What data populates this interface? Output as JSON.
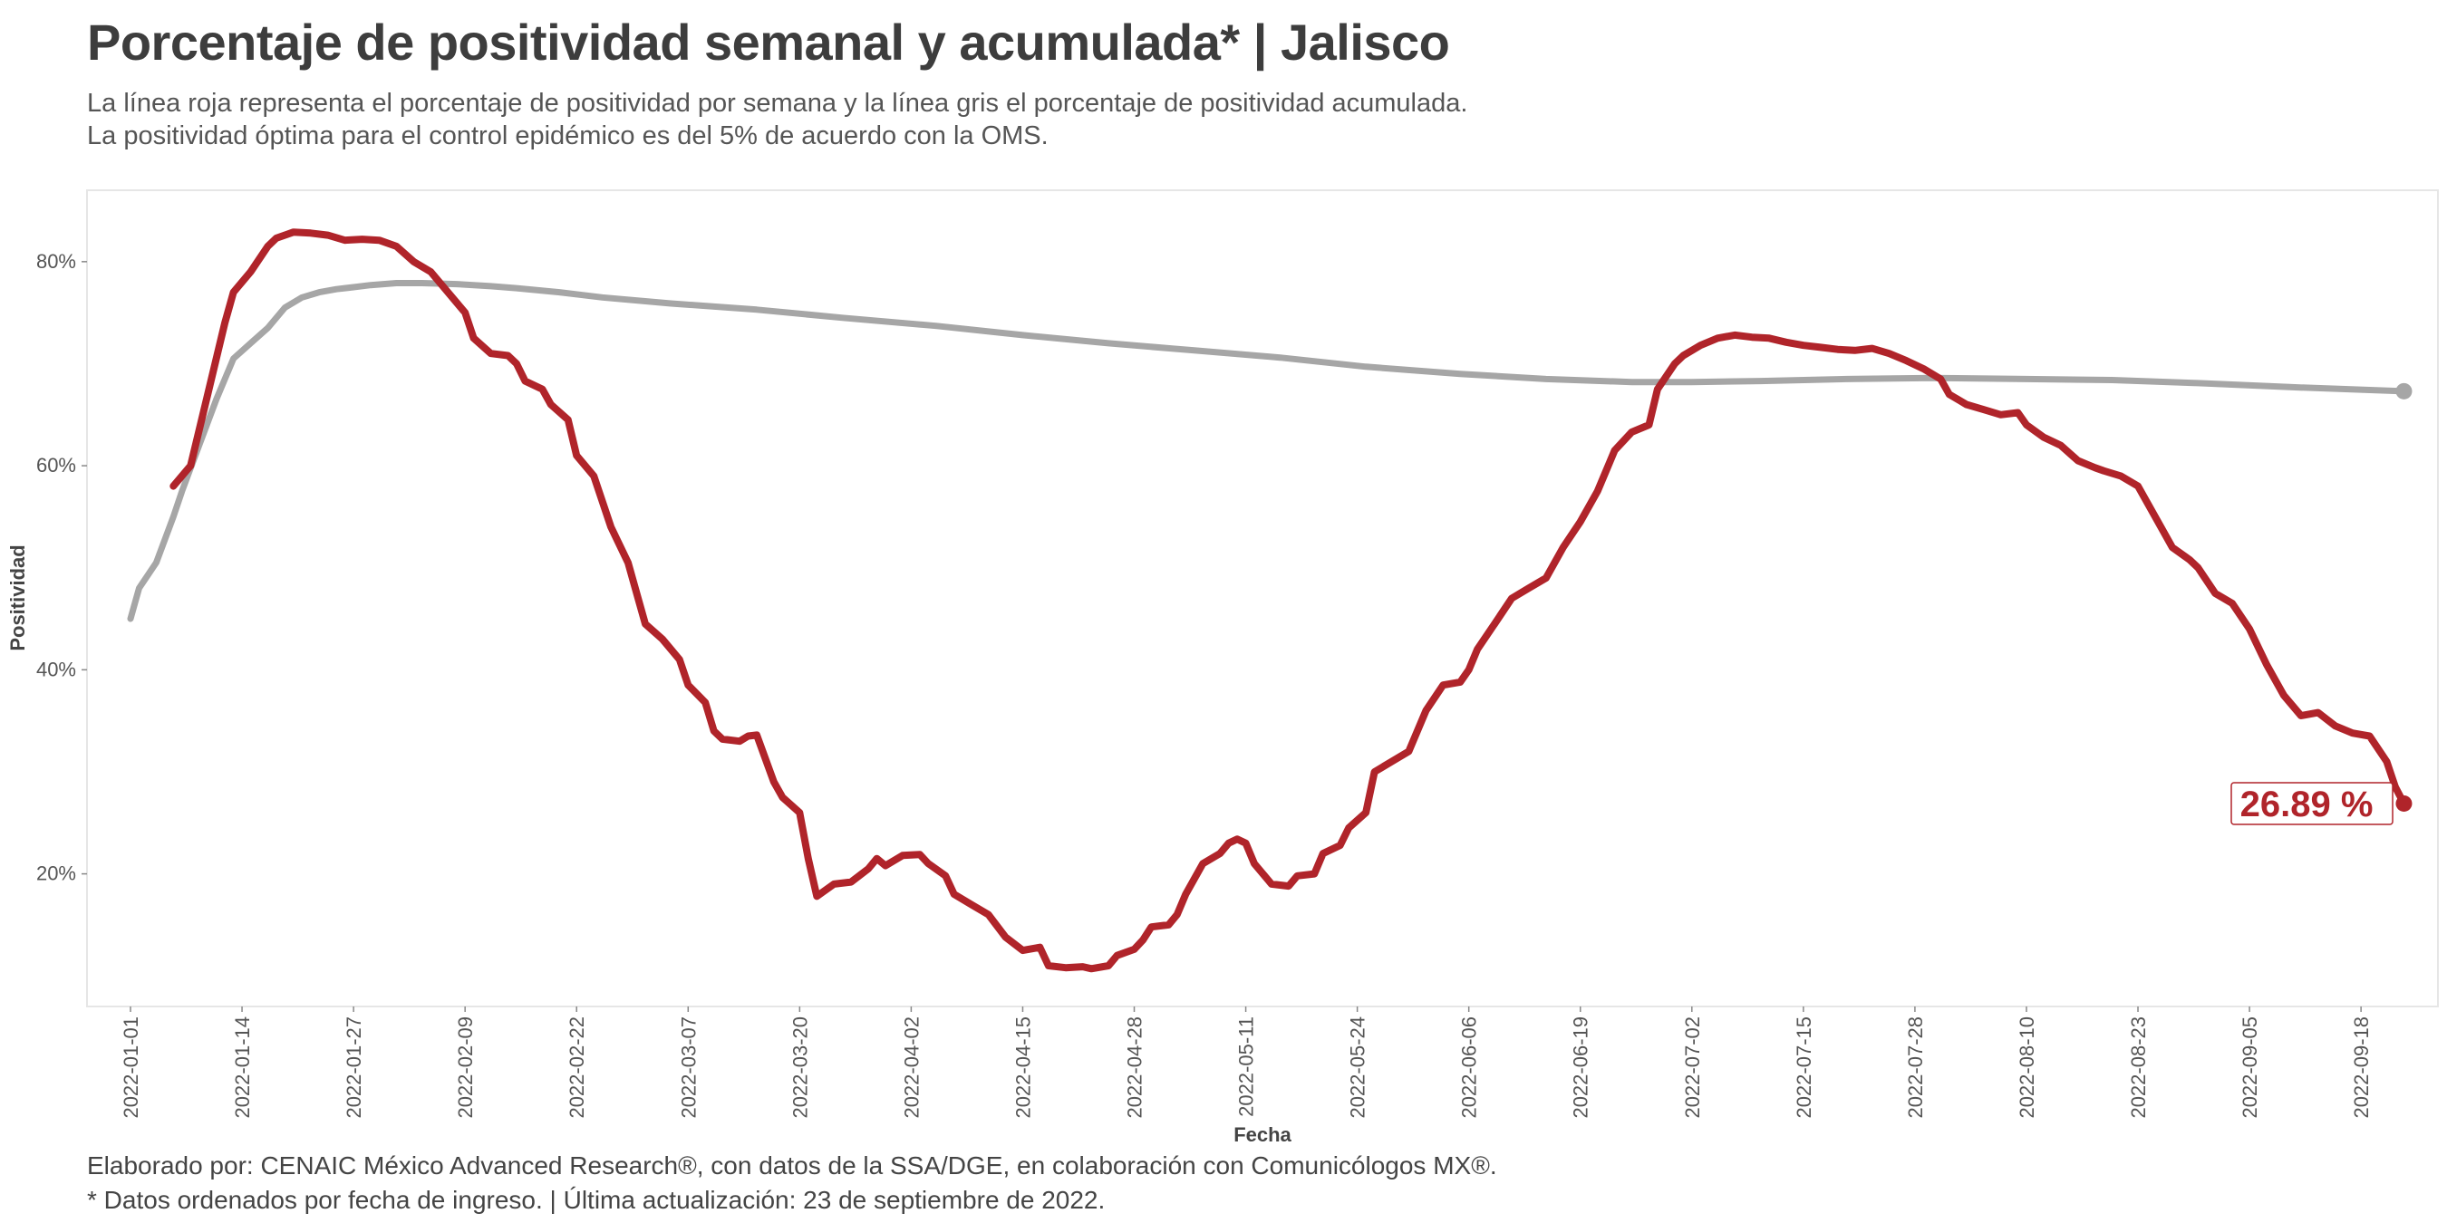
{
  "header": {
    "title": "Porcentaje de positividad semanal y acumulada* | Jalisco",
    "subtitle_1": "La línea roja representa el porcentaje de positividad por semana y la línea gris el porcentaje de positividad acumulada.",
    "subtitle_2": "La positividad óptima para el control epidémico es del 5% de acuerdo con la OMS."
  },
  "footer": {
    "line_1": "Elaborado por: CENAIC México Advanced Research®, con datos de la SSA/DGE, en colaboración con Comunicólogos MX®.",
    "line_2": "* Datos ordenados por fecha de ingreso. | Última actualización: 23 de septiembre de 2022."
  },
  "colors": {
    "weekly": "#b0242a",
    "cumulative": "#a6a6a6",
    "panel_border": "#e6e6e6"
  },
  "chart_data": {
    "type": "line",
    "xlabel": "Fecha",
    "ylabel": "Positividad",
    "x_start": "2022-01-01",
    "x_end": "2022-09-22",
    "ylim": [
      7,
      87
    ],
    "y_ticks": [
      20,
      40,
      60,
      80
    ],
    "y_tick_labels": [
      "20%",
      "40%",
      "60%",
      "80%"
    ],
    "x_ticks": [
      "2022-01-01",
      "2022-01-14",
      "2022-01-27",
      "2022-02-09",
      "2022-02-22",
      "2022-03-07",
      "2022-03-20",
      "2022-04-02",
      "2022-04-15",
      "2022-04-28",
      "2022-05-11",
      "2022-05-24",
      "2022-06-06",
      "2022-06-19",
      "2022-07-02",
      "2022-07-15",
      "2022-07-28",
      "2022-08-10",
      "2022-08-23",
      "2022-09-05",
      "2022-09-18"
    ],
    "grid": false,
    "end_label": "26.89 %",
    "series": [
      {
        "color": "#b0242a",
        "points": [
          [
            "2022-01-06",
            58.0
          ],
          [
            "2022-01-08",
            60.0
          ],
          [
            "2022-01-10",
            67.0
          ],
          [
            "2022-01-12",
            74.0
          ],
          [
            "2022-01-13",
            77.0
          ],
          [
            "2022-01-15",
            79.0
          ],
          [
            "2022-01-17",
            81.5
          ],
          [
            "2022-01-18",
            82.3
          ],
          [
            "2022-01-20",
            82.9
          ],
          [
            "2022-01-22",
            82.8
          ],
          [
            "2022-01-24",
            82.6
          ],
          [
            "2022-01-26",
            82.1
          ],
          [
            "2022-01-28",
            82.2
          ],
          [
            "2022-01-30",
            82.1
          ],
          [
            "2022-02-01",
            81.5
          ],
          [
            "2022-02-03",
            80.0
          ],
          [
            "2022-02-05",
            79.0
          ],
          [
            "2022-02-07",
            77.0
          ],
          [
            "2022-02-09",
            75.0
          ],
          [
            "2022-02-10",
            72.5
          ],
          [
            "2022-02-12",
            71.0
          ],
          [
            "2022-02-14",
            70.8
          ],
          [
            "2022-02-15",
            70.0
          ],
          [
            "2022-02-16",
            68.3
          ],
          [
            "2022-02-18",
            67.5
          ],
          [
            "2022-02-19",
            66.0
          ],
          [
            "2022-02-21",
            64.5
          ],
          [
            "2022-02-22",
            61.0
          ],
          [
            "2022-02-24",
            59.0
          ],
          [
            "2022-02-26",
            54.0
          ],
          [
            "2022-02-28",
            50.5
          ],
          [
            "2022-03-01",
            47.5
          ],
          [
            "2022-03-02",
            44.5
          ],
          [
            "2022-03-04",
            43.0
          ],
          [
            "2022-03-06",
            41.0
          ],
          [
            "2022-03-07",
            38.5
          ],
          [
            "2022-03-09",
            36.8
          ],
          [
            "2022-03-10",
            34.0
          ],
          [
            "2022-03-11",
            33.2
          ],
          [
            "2022-03-13",
            33.0
          ],
          [
            "2022-03-14",
            33.5
          ],
          [
            "2022-03-15",
            33.6
          ],
          [
            "2022-03-17",
            29.0
          ],
          [
            "2022-03-18",
            27.5
          ],
          [
            "2022-03-20",
            26.0
          ],
          [
            "2022-03-21",
            21.5
          ],
          [
            "2022-03-22",
            17.8
          ],
          [
            "2022-03-24",
            19.0
          ],
          [
            "2022-03-26",
            19.2
          ],
          [
            "2022-03-28",
            20.5
          ],
          [
            "2022-03-29",
            21.5
          ],
          [
            "2022-03-30",
            20.8
          ],
          [
            "2022-04-01",
            21.8
          ],
          [
            "2022-04-03",
            21.9
          ],
          [
            "2022-04-04",
            21.0
          ],
          [
            "2022-04-06",
            19.8
          ],
          [
            "2022-04-07",
            18.0
          ],
          [
            "2022-04-09",
            17.0
          ],
          [
            "2022-04-11",
            16.0
          ],
          [
            "2022-04-13",
            13.8
          ],
          [
            "2022-04-15",
            12.5
          ],
          [
            "2022-04-17",
            12.8
          ],
          [
            "2022-04-18",
            11.0
          ],
          [
            "2022-04-20",
            10.8
          ],
          [
            "2022-04-22",
            10.9
          ],
          [
            "2022-04-23",
            10.7
          ],
          [
            "2022-04-25",
            11.0
          ],
          [
            "2022-04-26",
            12.0
          ],
          [
            "2022-04-28",
            12.6
          ],
          [
            "2022-04-29",
            13.5
          ],
          [
            "2022-04-30",
            14.8
          ],
          [
            "2022-05-02",
            15.0
          ],
          [
            "2022-05-03",
            16.0
          ],
          [
            "2022-05-04",
            18.0
          ],
          [
            "2022-05-06",
            21.0
          ],
          [
            "2022-05-08",
            22.0
          ],
          [
            "2022-05-09",
            23.0
          ],
          [
            "2022-05-10",
            23.4
          ],
          [
            "2022-05-11",
            23.0
          ],
          [
            "2022-05-12",
            21.0
          ],
          [
            "2022-05-14",
            19.0
          ],
          [
            "2022-05-16",
            18.8
          ],
          [
            "2022-05-17",
            19.8
          ],
          [
            "2022-05-19",
            20.0
          ],
          [
            "2022-05-20",
            22.0
          ],
          [
            "2022-05-22",
            22.8
          ],
          [
            "2022-05-23",
            24.5
          ],
          [
            "2022-05-25",
            26.0
          ],
          [
            "2022-05-26",
            30.0
          ],
          [
            "2022-05-28",
            31.0
          ],
          [
            "2022-05-30",
            32.0
          ],
          [
            "2022-06-01",
            36.0
          ],
          [
            "2022-06-03",
            38.5
          ],
          [
            "2022-06-05",
            38.8
          ],
          [
            "2022-06-06",
            40.0
          ],
          [
            "2022-06-07",
            42.0
          ],
          [
            "2022-06-09",
            44.5
          ],
          [
            "2022-06-11",
            47.0
          ],
          [
            "2022-06-13",
            48.0
          ],
          [
            "2022-06-15",
            49.0
          ],
          [
            "2022-06-17",
            52.0
          ],
          [
            "2022-06-19",
            54.5
          ],
          [
            "2022-06-21",
            57.5
          ],
          [
            "2022-06-23",
            61.5
          ],
          [
            "2022-06-25",
            63.3
          ],
          [
            "2022-06-27",
            64.0
          ],
          [
            "2022-06-28",
            67.5
          ],
          [
            "2022-06-30",
            70.0
          ],
          [
            "2022-07-01",
            70.8
          ],
          [
            "2022-07-03",
            71.8
          ],
          [
            "2022-07-05",
            72.5
          ],
          [
            "2022-07-07",
            72.8
          ],
          [
            "2022-07-09",
            72.6
          ],
          [
            "2022-07-11",
            72.5
          ],
          [
            "2022-07-13",
            72.1
          ],
          [
            "2022-07-15",
            71.8
          ],
          [
            "2022-07-17",
            71.6
          ],
          [
            "2022-07-19",
            71.4
          ],
          [
            "2022-07-21",
            71.3
          ],
          [
            "2022-07-23",
            71.5
          ],
          [
            "2022-07-25",
            71.0
          ],
          [
            "2022-07-27",
            70.3
          ],
          [
            "2022-07-29",
            69.5
          ],
          [
            "2022-07-31",
            68.5
          ],
          [
            "2022-08-01",
            67.0
          ],
          [
            "2022-08-03",
            66.0
          ],
          [
            "2022-08-05",
            65.5
          ],
          [
            "2022-08-07",
            65.0
          ],
          [
            "2022-08-09",
            65.2
          ],
          [
            "2022-08-10",
            64.0
          ],
          [
            "2022-08-12",
            62.8
          ],
          [
            "2022-08-14",
            62.0
          ],
          [
            "2022-08-16",
            60.5
          ],
          [
            "2022-08-18",
            59.8
          ],
          [
            "2022-08-19",
            59.5
          ],
          [
            "2022-08-21",
            59.0
          ],
          [
            "2022-08-23",
            58.0
          ],
          [
            "2022-08-25",
            55.0
          ],
          [
            "2022-08-27",
            52.0
          ],
          [
            "2022-08-29",
            50.8
          ],
          [
            "2022-08-30",
            50.0
          ],
          [
            "2022-09-01",
            47.5
          ],
          [
            "2022-09-03",
            46.5
          ],
          [
            "2022-09-05",
            44.0
          ],
          [
            "2022-09-07",
            40.5
          ],
          [
            "2022-09-09",
            37.5
          ],
          [
            "2022-09-11",
            35.5
          ],
          [
            "2022-09-13",
            35.8
          ],
          [
            "2022-09-15",
            34.5
          ],
          [
            "2022-09-17",
            33.8
          ],
          [
            "2022-09-19",
            33.5
          ],
          [
            "2022-09-21",
            31.0
          ],
          [
            "2022-09-22",
            28.5
          ],
          [
            "2022-09-23",
            26.89
          ]
        ]
      },
      {
        "color": "#a6a6a6",
        "points": [
          [
            "2022-01-01",
            45.0
          ],
          [
            "2022-01-02",
            48.0
          ],
          [
            "2022-01-04",
            50.5
          ],
          [
            "2022-01-06",
            55.0
          ],
          [
            "2022-01-07",
            57.5
          ],
          [
            "2022-01-09",
            62.0
          ],
          [
            "2022-01-11",
            66.5
          ],
          [
            "2022-01-13",
            70.5
          ],
          [
            "2022-01-15",
            72.0
          ],
          [
            "2022-01-17",
            73.5
          ],
          [
            "2022-01-19",
            75.5
          ],
          [
            "2022-01-21",
            76.5
          ],
          [
            "2022-01-23",
            77.0
          ],
          [
            "2022-01-25",
            77.3
          ],
          [
            "2022-01-27",
            77.5
          ],
          [
            "2022-01-29",
            77.7
          ],
          [
            "2022-02-01",
            77.9
          ],
          [
            "2022-02-04",
            77.9
          ],
          [
            "2022-02-08",
            77.8
          ],
          [
            "2022-02-12",
            77.6
          ],
          [
            "2022-02-15",
            77.4
          ],
          [
            "2022-02-20",
            77.0
          ],
          [
            "2022-02-25",
            76.5
          ],
          [
            "2022-03-05",
            75.9
          ],
          [
            "2022-03-15",
            75.3
          ],
          [
            "2022-03-25",
            74.5
          ],
          [
            "2022-04-05",
            73.7
          ],
          [
            "2022-04-15",
            72.8
          ],
          [
            "2022-04-25",
            72.0
          ],
          [
            "2022-05-05",
            71.3
          ],
          [
            "2022-05-15",
            70.6
          ],
          [
            "2022-05-25",
            69.7
          ],
          [
            "2022-06-05",
            69.0
          ],
          [
            "2022-06-15",
            68.5
          ],
          [
            "2022-06-25",
            68.2
          ],
          [
            "2022-07-02",
            68.2
          ],
          [
            "2022-07-10",
            68.3
          ],
          [
            "2022-07-20",
            68.5
          ],
          [
            "2022-07-30",
            68.6
          ],
          [
            "2022-08-10",
            68.5
          ],
          [
            "2022-08-20",
            68.4
          ],
          [
            "2022-08-30",
            68.1
          ],
          [
            "2022-09-10",
            67.7
          ],
          [
            "2022-09-23",
            67.3
          ]
        ]
      }
    ]
  }
}
